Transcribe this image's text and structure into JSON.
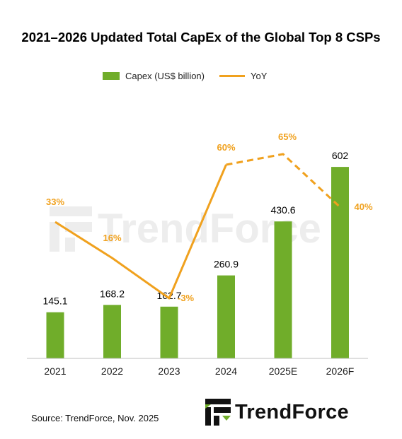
{
  "title": "2021–2026 Updated Total CapEx of the Global Top 8 CSPs",
  "legend": {
    "bar_label": "Capex (US$ billion)",
    "line_label": "YoY"
  },
  "colors": {
    "bar": "#70AD2A",
    "line": "#F0A11E",
    "axis": "#BFBFBF",
    "yoy_label": "#F0A11E",
    "value_label": "#000000"
  },
  "source": "Source: TrendForce, Nov. 2025",
  "logo": {
    "text": "TrendForce"
  },
  "watermark": {
    "text": "TrendForce"
  },
  "chart_data": {
    "type": "bar",
    "title": "2021–2026 Updated Total CapEx of the Global Top 8 CSPs",
    "categories": [
      "2021",
      "2022",
      "2023",
      "2024",
      "2025E",
      "2026F"
    ],
    "series": [
      {
        "name": "Capex (US$ billion)",
        "type": "bar",
        "values": [
          145.1,
          168.2,
          162.7,
          260.9,
          430.6,
          602
        ],
        "labels": [
          "145.1",
          "168.2",
          "162.7",
          "260.9",
          "430.6",
          "602"
        ]
      },
      {
        "name": "YoY",
        "type": "line",
        "values": [
          33,
          16,
          -3,
          60,
          65,
          40
        ],
        "labels": [
          "33%",
          "16%",
          "-3%",
          "60%",
          "65%",
          "40%"
        ],
        "dashed_from_index": 3
      }
    ],
    "xlabel": "",
    "ylabel": "",
    "legend_position": "top-center",
    "grid": false
  }
}
